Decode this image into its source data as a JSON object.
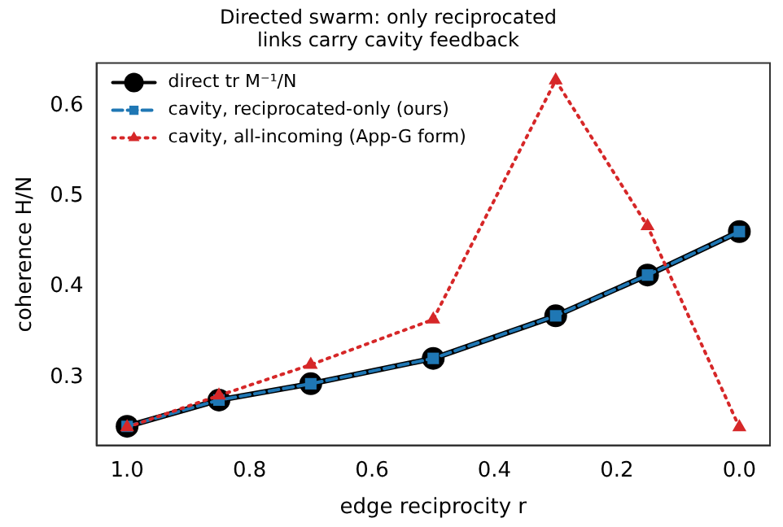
{
  "chart_data": {
    "type": "line",
    "title": "Directed swarm: only reciprocated\nlinks carry cavity feedback",
    "xlabel": "edge reciprocity r",
    "ylabel": "coherence H/N",
    "x": [
      1.0,
      0.85,
      0.7,
      0.5,
      0.3,
      0.15,
      0.0
    ],
    "series": [
      {
        "name": "direct tr M⁻¹/N",
        "color": "#000000",
        "marker": "circle",
        "line_style": "solid",
        "values": [
          0.246,
          0.275,
          0.293,
          0.321,
          0.368,
          0.413,
          0.461
        ]
      },
      {
        "name": "cavity, reciprocated-only (ours)",
        "color": "#1f77b4",
        "marker": "square",
        "line_style": "dashed",
        "values": [
          0.246,
          0.275,
          0.293,
          0.321,
          0.368,
          0.413,
          0.461
        ]
      },
      {
        "name": "cavity, all-incoming (App-G form)",
        "color": "#d62728",
        "marker": "triangle",
        "line_style": "dotted",
        "values": [
          0.245,
          0.28,
          0.314,
          0.364,
          0.628,
          0.467,
          0.245
        ]
      }
    ],
    "xlim": [
      1.05,
      -0.05
    ],
    "xticks": [
      {
        "value": 1.0,
        "label": "1.0"
      },
      {
        "value": 0.8,
        "label": "0.8"
      },
      {
        "value": 0.6,
        "label": "0.6"
      },
      {
        "value": 0.4,
        "label": "0.4"
      },
      {
        "value": 0.2,
        "label": "0.2"
      },
      {
        "value": 0.0,
        "label": "0.0"
      }
    ],
    "ylim": [
      0.225,
      0.647
    ],
    "yticks": [
      0.3,
      0.4,
      0.5,
      0.6
    ],
    "legend": "top left",
    "grid": false
  }
}
